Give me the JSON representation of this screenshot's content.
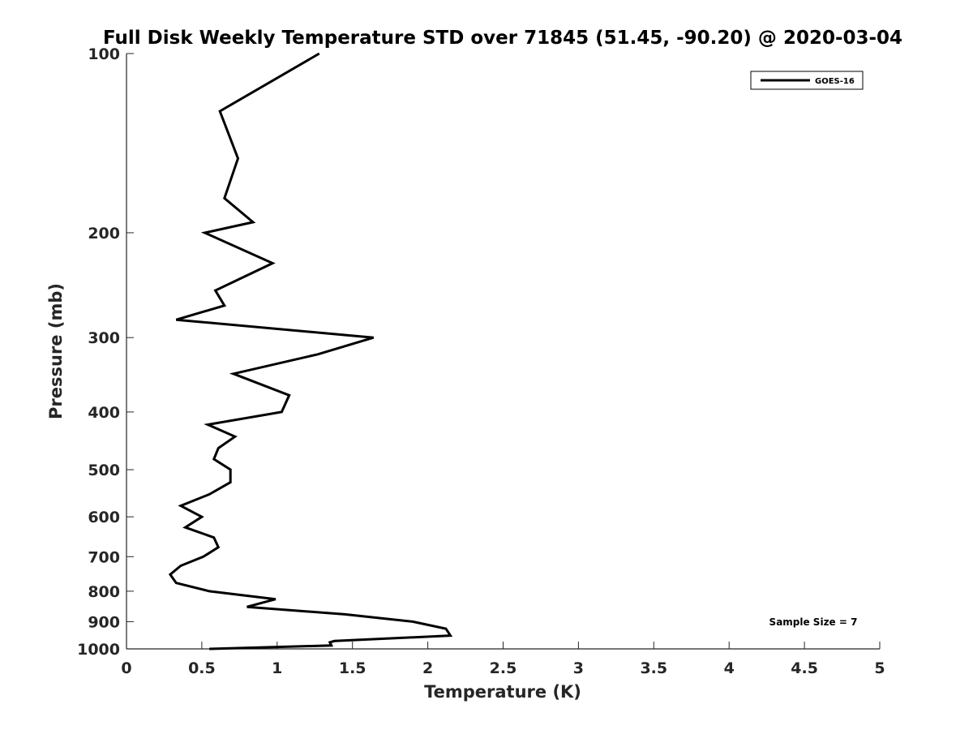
{
  "chart_data": {
    "type": "line",
    "title": "Full Disk Weekly Temperature STD over 71845 (51.45, -90.20) @ 2020-03-04",
    "xlabel": "Temperature (K)",
    "ylabel": "Pressure (mb)",
    "xlim": [
      0,
      5
    ],
    "ylim": [
      100,
      1000
    ],
    "y_scale": "log",
    "y_reversed": true,
    "grid": false,
    "legend_position": "top-right",
    "x_ticks": [
      0,
      0.5,
      1,
      1.5,
      2,
      2.5,
      3,
      3.5,
      4,
      4.5,
      5
    ],
    "x_tick_labels": [
      "0",
      "0.5",
      "1",
      "1.5",
      "2",
      "2.5",
      "3",
      "3.5",
      "4",
      "4.5",
      "5"
    ],
    "y_ticks": [
      100,
      200,
      300,
      400,
      500,
      600,
      700,
      800,
      900,
      1000
    ],
    "y_tick_labels": [
      "100",
      "200",
      "300",
      "400",
      "500",
      "600",
      "700",
      "800",
      "900",
      "1000"
    ],
    "series": [
      {
        "name": "GOES-16",
        "color": "#000000",
        "x": [
          1.28,
          0.62,
          0.74,
          0.65,
          0.84,
          0.52,
          0.97,
          0.59,
          0.65,
          0.33,
          1.64,
          1.27,
          0.71,
          1.08,
          1.03,
          0.54,
          0.72,
          0.61,
          0.58,
          0.69,
          0.69,
          0.55,
          0.36,
          0.5,
          0.39,
          0.58,
          0.61,
          0.51,
          0.36,
          0.29,
          0.33,
          0.55,
          0.99,
          0.8,
          1.45,
          1.9,
          2.12,
          2.15,
          1.38,
          1.35,
          1.36,
          0.55
        ],
        "y": [
          100,
          125,
          150,
          175,
          192,
          200,
          225,
          250,
          265,
          280,
          300,
          320,
          345,
          375,
          400,
          420,
          440,
          460,
          480,
          500,
          525,
          550,
          575,
          600,
          625,
          650,
          675,
          700,
          725,
          750,
          775,
          800,
          825,
          850,
          875,
          900,
          925,
          950,
          970,
          975,
          987,
          1000
        ]
      }
    ],
    "annotation": "Sample Size = 7"
  }
}
